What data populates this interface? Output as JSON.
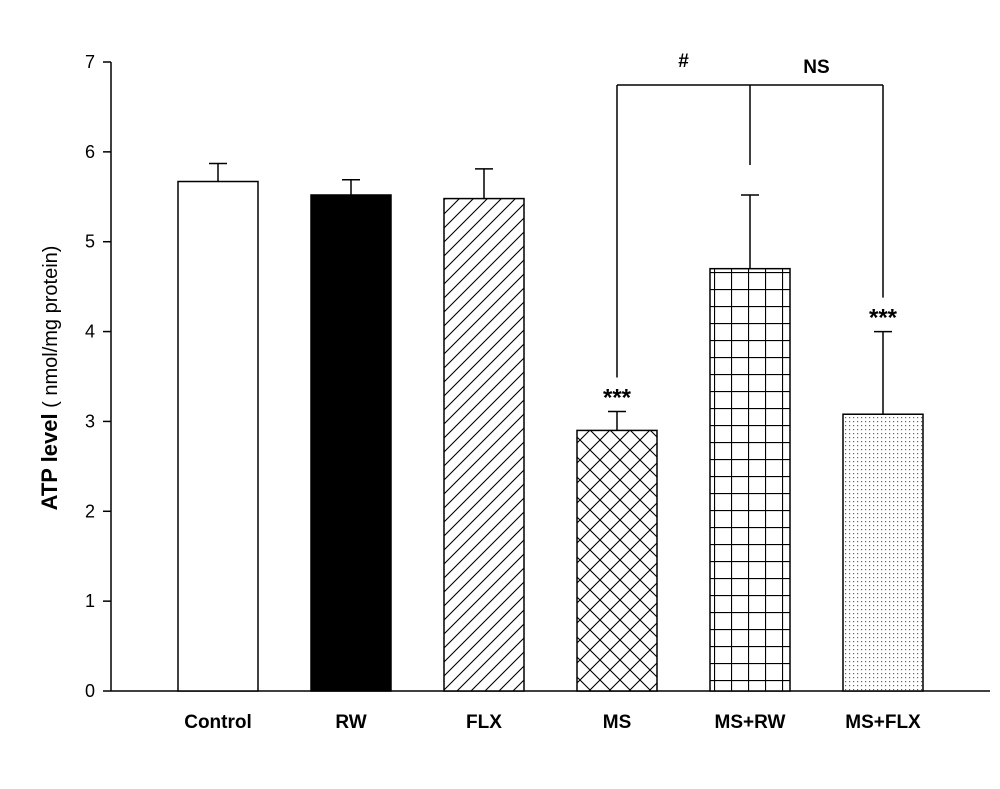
{
  "chart_data": {
    "type": "bar",
    "categories": [
      "Control",
      "RW",
      "FLX",
      "MS",
      "MS+RW",
      "MS+FLX"
    ],
    "values": [
      5.67,
      5.52,
      5.48,
      2.9,
      4.7,
      3.08
    ],
    "errors": [
      0.2,
      0.17,
      0.33,
      0.21,
      0.82,
      0.92
    ],
    "fills": [
      "white",
      "black",
      "diagonal",
      "crosshatch",
      "grid",
      "dots"
    ],
    "ylabel_bold": "ATP level",
    "ylabel_rest": " ( nmol/mg protein)",
    "ylim": [
      0,
      7
    ],
    "yticks": [
      "0",
      "1",
      "2",
      "3",
      "4",
      "5",
      "6",
      "7"
    ],
    "grid": false,
    "annotations": {
      "bar_marks": [
        {
          "category": "MS",
          "text": "***"
        },
        {
          "category": "MS+FLX",
          "text": "***"
        }
      ],
      "bracket_left_label": "#",
      "bracket_right_label": "NS"
    },
    "colors": {
      "bar_edge": "#000000",
      "axis": "#000000",
      "solid_fill": "#000000"
    }
  }
}
